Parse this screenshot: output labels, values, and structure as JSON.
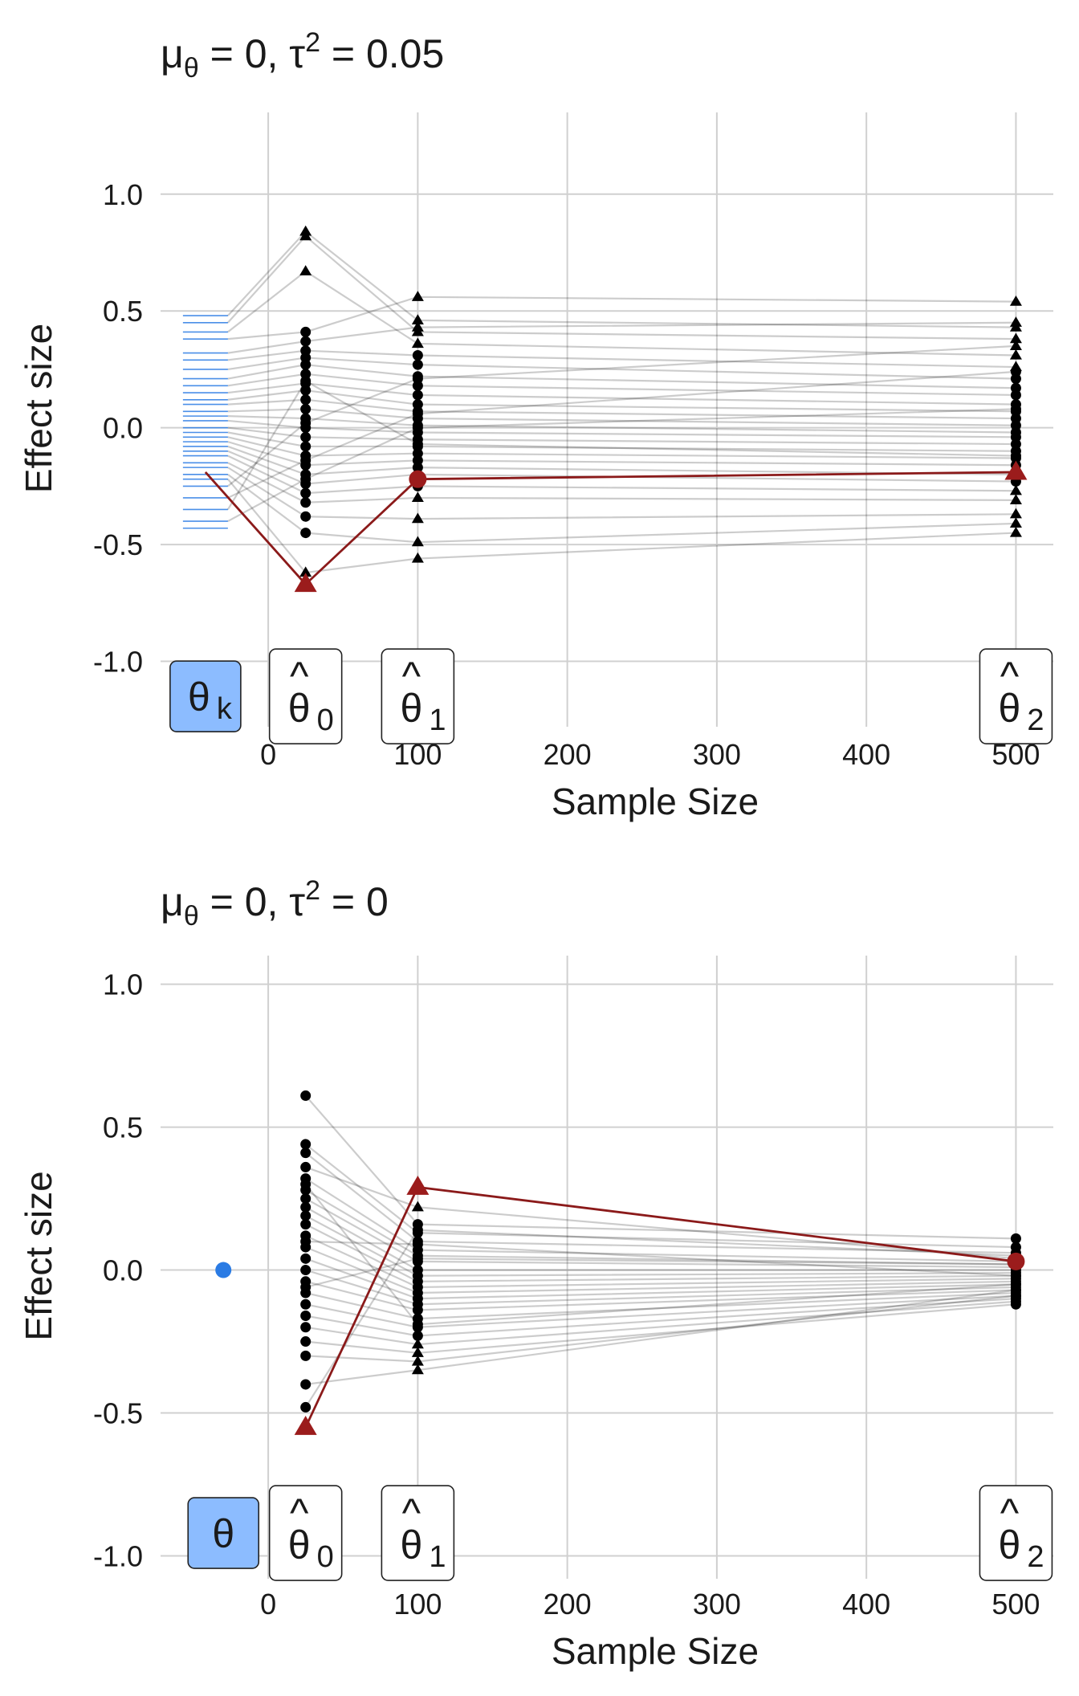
{
  "colors": {
    "point": "#000000",
    "highlight": "#9b1c1c",
    "true_effect": "#2a7be4",
    "true_effect_box": "#8cbcff",
    "grid": "#d0d0d0"
  },
  "chart_data": [
    {
      "type": "scatter",
      "title": {
        "prefix": "μ",
        "prefix_sub": "θ",
        "rest1": " = 0, τ",
        "sup": "2",
        "rest2": " = 0.05"
      },
      "xlabel": "Sample Size",
      "ylabel": "Effect size",
      "xlim": [
        -72,
        525
      ],
      "ylim": [
        -1.28,
        1.35
      ],
      "x_ticks": [
        0,
        100,
        200,
        300,
        400,
        500
      ],
      "x_tick_labels": [
        "0",
        "100",
        "200",
        "300",
        "400",
        "500"
      ],
      "y_ticks": [
        1.0,
        0.5,
        0.0,
        -0.5,
        -1.0
      ],
      "y_tick_labels": [
        "1.0",
        "0.5",
        "0.0",
        "-0.5",
        "-1.0"
      ],
      "grid": true,
      "legend": "none",
      "true_effects_rug": {
        "x": -42,
        "values": [
          0.48,
          0.45,
          0.41,
          0.38,
          0.32,
          0.29,
          0.25,
          0.21,
          0.18,
          0.15,
          0.12,
          0.1,
          0.07,
          0.05,
          0.03,
          0.0,
          -0.02,
          -0.04,
          -0.06,
          -0.08,
          -0.1,
          -0.12,
          -0.15,
          -0.17,
          -0.2,
          -0.22,
          -0.25,
          -0.3,
          -0.35,
          -0.4,
          -0.43
        ]
      },
      "box_labels": [
        {
          "x": -42,
          "y": -1.15,
          "main": "θ",
          "sub": "k",
          "hat": "",
          "style": "filled"
        },
        {
          "x": 25,
          "y": -1.15,
          "main": "θ",
          "sub": "0",
          "hat": "^",
          "style": "outline"
        },
        {
          "x": 100,
          "y": -1.15,
          "main": "θ",
          "sub": "1",
          "hat": "^",
          "style": "outline"
        },
        {
          "x": 500,
          "y": -1.15,
          "main": "θ",
          "sub": "2",
          "hat": "^",
          "style": "outline"
        }
      ],
      "series": [
        {
          "x": [
            25,
            100,
            500
          ],
          "paths": [
            {
              "y": [
                0.84,
                0.46,
                0.43
              ],
              "shapes": [
                "tri",
                "tri",
                "tri"
              ]
            },
            {
              "y": [
                0.82,
                0.41,
                0.38
              ],
              "shapes": [
                "tri",
                "tri",
                "tri"
              ]
            },
            {
              "y": [
                0.67,
                0.36,
                0.31
              ],
              "shapes": [
                "tri",
                "tri",
                "tri"
              ]
            },
            {
              "y": [
                0.41,
                0.56,
                0.54
              ],
              "shapes": [
                "dot",
                "tri",
                "tri"
              ]
            },
            {
              "y": [
                0.37,
                0.43,
                0.45
              ],
              "shapes": [
                "dot",
                "tri",
                "tri"
              ]
            },
            {
              "y": [
                0.33,
                0.31,
                0.26
              ],
              "shapes": [
                "dot",
                "dot",
                "tri"
              ]
            },
            {
              "y": [
                0.3,
                0.27,
                0.21
              ],
              "shapes": [
                "dot",
                "dot",
                "dot"
              ]
            },
            {
              "y": [
                0.27,
                0.22,
                0.17
              ],
              "shapes": [
                "dot",
                "dot",
                "dot"
              ]
            },
            {
              "y": [
                0.23,
                0.18,
                0.14
              ],
              "shapes": [
                "dot",
                "dot",
                "dot"
              ]
            },
            {
              "y": [
                0.19,
                0.14,
                0.1
              ],
              "shapes": [
                "dot",
                "dot",
                "dot"
              ]
            },
            {
              "y": [
                0.16,
                0.1,
                0.07
              ],
              "shapes": [
                "dot",
                "dot",
                "dot"
              ]
            },
            {
              "y": [
                0.12,
                0.07,
                0.04
              ],
              "shapes": [
                "dot",
                "dot",
                "dot"
              ]
            },
            {
              "y": [
                0.08,
                0.04,
                0.01
              ],
              "shapes": [
                "dot",
                "dot",
                "dot"
              ]
            },
            {
              "y": [
                0.04,
                0.01,
                -0.02
              ],
              "shapes": [
                "dot",
                "dot",
                "dot"
              ]
            },
            {
              "y": [
                0.0,
                -0.02,
                -0.04
              ],
              "shapes": [
                "dot",
                "dot",
                "dot"
              ]
            },
            {
              "y": [
                -0.04,
                -0.05,
                -0.07
              ],
              "shapes": [
                "dot",
                "dot",
                "dot"
              ]
            },
            {
              "y": [
                -0.08,
                -0.08,
                -0.1
              ],
              "shapes": [
                "dot",
                "dot",
                "dot"
              ]
            },
            {
              "y": [
                -0.12,
                -0.11,
                -0.13
              ],
              "shapes": [
                "dot",
                "dot",
                "dot"
              ]
            },
            {
              "y": [
                -0.16,
                -0.14,
                -0.16
              ],
              "shapes": [
                "dot",
                "dot",
                "dot"
              ]
            },
            {
              "y": [
                -0.2,
                -0.17,
                -0.2
              ],
              "shapes": [
                "dot",
                "dot",
                "dot"
              ]
            },
            {
              "y": [
                -0.24,
                -0.2,
                -0.23
              ],
              "shapes": [
                "dot",
                "dot",
                "dot"
              ]
            },
            {
              "y": [
                -0.28,
                -0.25,
                -0.27
              ],
              "shapes": [
                "dot",
                "dot",
                "tri"
              ]
            },
            {
              "y": [
                -0.32,
                -0.3,
                -0.31
              ],
              "shapes": [
                "dot",
                "tri",
                "tri"
              ]
            },
            {
              "y": [
                -0.38,
                -0.39,
                -0.37
              ],
              "shapes": [
                "dot",
                "tri",
                "tri"
              ]
            },
            {
              "y": [
                -0.45,
                -0.49,
                -0.41
              ],
              "shapes": [
                "dot",
                "tri",
                "tri"
              ]
            },
            {
              "y": [
                -0.62,
                -0.56,
                -0.45
              ],
              "shapes": [
                "tri",
                "tri",
                "tri"
              ]
            },
            {
              "y": [
                0.02,
                0.21,
                0.35
              ],
              "shapes": [
                "dot",
                "dot",
                "tri"
              ]
            },
            {
              "y": [
                -0.14,
                0.06,
                0.24
              ],
              "shapes": [
                "dot",
                "dot",
                "dot"
              ]
            },
            {
              "y": [
                0.2,
                -0.07,
                -0.12
              ],
              "shapes": [
                "dot",
                "dot",
                "dot"
              ]
            },
            {
              "y": [
                -0.22,
                0.0,
                0.08
              ],
              "shapes": [
                "dot",
                "dot",
                "dot"
              ]
            }
          ]
        }
      ],
      "highlight": {
        "x": [
          25,
          100,
          500
        ],
        "y": [
          -0.67,
          -0.22,
          -0.19
        ],
        "shapes": [
          "tri",
          "dot",
          "tri"
        ],
        "start_x": -42,
        "start_y": -0.19
      }
    },
    {
      "type": "scatter",
      "title": {
        "prefix": "μ",
        "prefix_sub": "θ",
        "rest1": " = 0, τ",
        "sup": "2",
        "rest2": " = 0"
      },
      "xlabel": "Sample Size",
      "ylabel": "Effect size",
      "xlim": [
        -72,
        525
      ],
      "ylim": [
        -1.08,
        1.1
      ],
      "x_ticks": [
        0,
        100,
        200,
        300,
        400,
        500
      ],
      "x_tick_labels": [
        "0",
        "100",
        "200",
        "300",
        "400",
        "500"
      ],
      "y_ticks": [
        1.0,
        0.5,
        0.0,
        -0.5,
        -1.0
      ],
      "y_tick_labels": [
        "1.0",
        "0.5",
        "0.0",
        "-0.5",
        "-1.0"
      ],
      "grid": true,
      "legend": "none",
      "true_effect_point": {
        "x": -30,
        "y": 0.0
      },
      "box_labels": [
        {
          "x": -30,
          "y": -0.92,
          "main": "θ",
          "sub": "",
          "hat": "",
          "style": "filled"
        },
        {
          "x": 25,
          "y": -0.92,
          "main": "θ",
          "sub": "0",
          "hat": "^",
          "style": "outline"
        },
        {
          "x": 100,
          "y": -0.92,
          "main": "θ",
          "sub": "1",
          "hat": "^",
          "style": "outline"
        },
        {
          "x": 500,
          "y": -0.92,
          "main": "θ",
          "sub": "2",
          "hat": "^",
          "style": "outline"
        }
      ],
      "series": [
        {
          "x": [
            25,
            100,
            500
          ],
          "paths": [
            {
              "y": [
                0.61,
                0.16,
                0.11
              ],
              "shapes": [
                "dot",
                "dot",
                "dot"
              ]
            },
            {
              "y": [
                0.44,
                0.13,
                0.08
              ],
              "shapes": [
                "dot",
                "dot",
                "dot"
              ]
            },
            {
              "y": [
                0.41,
                0.1,
                0.06
              ],
              "shapes": [
                "dot",
                "dot",
                "dot"
              ]
            },
            {
              "y": [
                0.36,
                0.22,
                0.04
              ],
              "shapes": [
                "dot",
                "tri",
                "dot"
              ]
            },
            {
              "y": [
                0.32,
                0.07,
                0.03
              ],
              "shapes": [
                "dot",
                "dot",
                "dot"
              ]
            },
            {
              "y": [
                0.28,
                0.05,
                0.02
              ],
              "shapes": [
                "dot",
                "dot",
                "dot"
              ]
            },
            {
              "y": [
                0.25,
                0.03,
                0.01
              ],
              "shapes": [
                "dot",
                "dot",
                "dot"
              ]
            },
            {
              "y": [
                0.22,
                0.0,
                0.0
              ],
              "shapes": [
                "dot",
                "dot",
                "dot"
              ]
            },
            {
              "y": [
                0.19,
                -0.02,
                -0.01
              ],
              "shapes": [
                "dot",
                "dot",
                "dot"
              ]
            },
            {
              "y": [
                0.16,
                -0.04,
                -0.02
              ],
              "shapes": [
                "dot",
                "dot",
                "dot"
              ]
            },
            {
              "y": [
                0.12,
                -0.06,
                -0.03
              ],
              "shapes": [
                "dot",
                "dot",
                "dot"
              ]
            },
            {
              "y": [
                0.08,
                -0.08,
                -0.04
              ],
              "shapes": [
                "dot",
                "dot",
                "dot"
              ]
            },
            {
              "y": [
                0.04,
                -0.1,
                -0.05
              ],
              "shapes": [
                "dot",
                "dot",
                "dot"
              ]
            },
            {
              "y": [
                0.0,
                -0.12,
                -0.06
              ],
              "shapes": [
                "dot",
                "dot",
                "dot"
              ]
            },
            {
              "y": [
                -0.04,
                -0.14,
                -0.07
              ],
              "shapes": [
                "dot",
                "dot",
                "dot"
              ]
            },
            {
              "y": [
                -0.08,
                -0.17,
                -0.08
              ],
              "shapes": [
                "dot",
                "dot",
                "dot"
              ]
            },
            {
              "y": [
                -0.12,
                -0.2,
                -0.09
              ],
              "shapes": [
                "dot",
                "dot",
                "dot"
              ]
            },
            {
              "y": [
                -0.16,
                -0.23,
                -0.1
              ],
              "shapes": [
                "dot",
                "dot",
                "dot"
              ]
            },
            {
              "y": [
                -0.2,
                -0.26,
                -0.11
              ],
              "shapes": [
                "dot",
                "tri",
                "dot"
              ]
            },
            {
              "y": [
                -0.25,
                -0.29,
                -0.12
              ],
              "shapes": [
                "dot",
                "tri",
                "dot"
              ]
            },
            {
              "y": [
                -0.3,
                -0.32,
                -0.09
              ],
              "shapes": [
                "dot",
                "tri",
                "dot"
              ]
            },
            {
              "y": [
                -0.4,
                -0.35,
                -0.07
              ],
              "shapes": [
                "dot",
                "tri",
                "dot"
              ]
            },
            {
              "y": [
                -0.48,
                0.14,
                0.05
              ],
              "shapes": [
                "dot",
                "dot",
                "dot"
              ]
            },
            {
              "y": [
                0.1,
                0.09,
                -0.02
              ],
              "shapes": [
                "dot",
                "dot",
                "dot"
              ]
            },
            {
              "y": [
                -0.06,
                0.04,
                0.02
              ],
              "shapes": [
                "dot",
                "dot",
                "dot"
              ]
            },
            {
              "y": [
                0.3,
                -0.19,
                -0.05
              ],
              "shapes": [
                "dot",
                "dot",
                "dot"
              ]
            }
          ]
        }
      ],
      "highlight": {
        "x": [
          25,
          100,
          500
        ],
        "y": [
          -0.55,
          0.29,
          0.03
        ],
        "shapes": [
          "tri",
          "tri",
          "dot"
        ]
      }
    }
  ]
}
